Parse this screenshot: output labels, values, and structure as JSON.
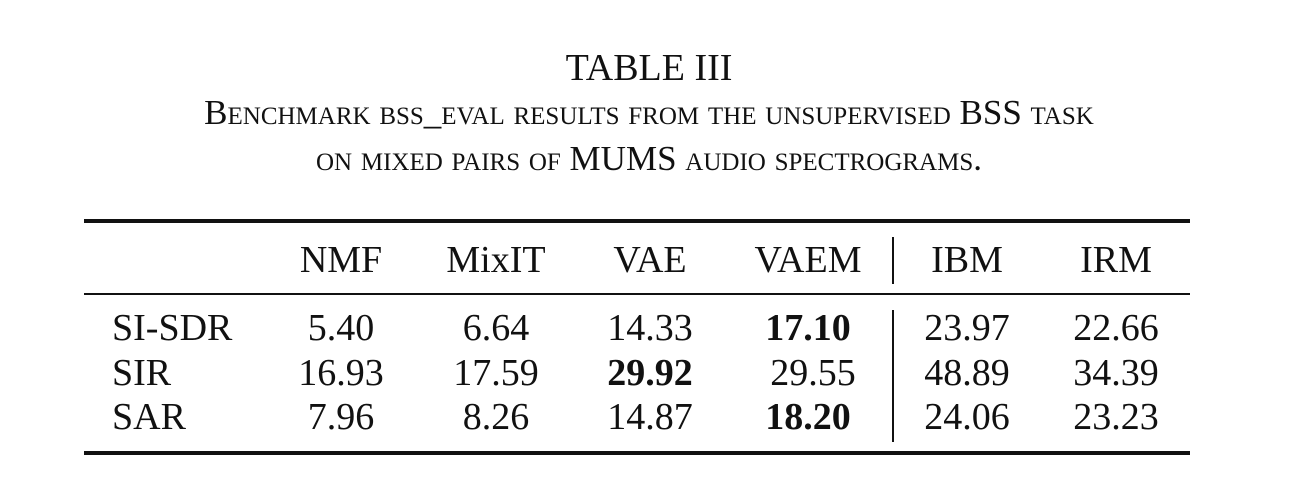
{
  "table": {
    "label": "TABLE III",
    "title_line1": "Benchmark bss_eval results from the unsupervised BSS task",
    "title_line2": "on mixed pairs of MUMS audio spectrograms.",
    "columns": [
      "NMF",
      "MixIT",
      "VAE",
      "VAEM",
      "IBM",
      "IRM"
    ],
    "rows": [
      {
        "metric": "SI-SDR",
        "values": [
          "5.40",
          "6.64",
          "14.33",
          "17.10",
          "23.97",
          "22.66"
        ],
        "best_index": 3
      },
      {
        "metric": "SIR",
        "values": [
          "16.93",
          "17.59",
          "29.92",
          "29.55",
          "48.89",
          "34.39"
        ],
        "best_index": 2
      },
      {
        "metric": "SAR",
        "values": [
          "7.96",
          "8.26",
          "14.87",
          "18.20",
          "24.06",
          "23.23"
        ],
        "best_index": 3
      }
    ]
  }
}
